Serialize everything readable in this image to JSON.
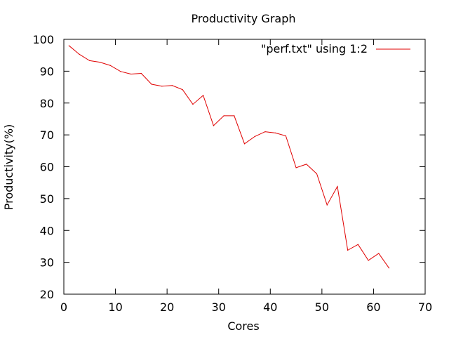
{
  "chart_data": {
    "type": "line",
    "title": "Productivity Graph",
    "xlabel": "Cores",
    "ylabel": "Productivity(%)",
    "xlim": [
      0,
      70
    ],
    "ylim": [
      20,
      100
    ],
    "x_ticks": [
      0,
      10,
      20,
      30,
      40,
      50,
      60,
      70
    ],
    "y_ticks": [
      20,
      30,
      40,
      50,
      60,
      70,
      80,
      90,
      100
    ],
    "grid": false,
    "legend_position": "top-right",
    "series": [
      {
        "name": "\"perf.txt\" using 1:2",
        "color": "#e00000",
        "x": [
          1,
          3,
          5,
          7,
          9,
          11,
          13,
          15,
          17,
          19,
          21,
          23,
          25,
          27,
          29,
          31,
          33,
          35,
          37,
          39,
          41,
          43,
          45,
          47,
          49,
          51,
          53,
          55,
          57,
          59,
          61,
          63
        ],
        "y": [
          98,
          95.3,
          93.3,
          92.8,
          91.8,
          89.9,
          89.1,
          89.3,
          85.9,
          85.3,
          85.5,
          84.2,
          79.6,
          82.4,
          72.9,
          76,
          76,
          67.2,
          69.5,
          71,
          70.6,
          69.7,
          59.7,
          60.8,
          57.8,
          48,
          53.8,
          33.8,
          35.6,
          30.6,
          32.8,
          28.2
        ]
      }
    ]
  }
}
